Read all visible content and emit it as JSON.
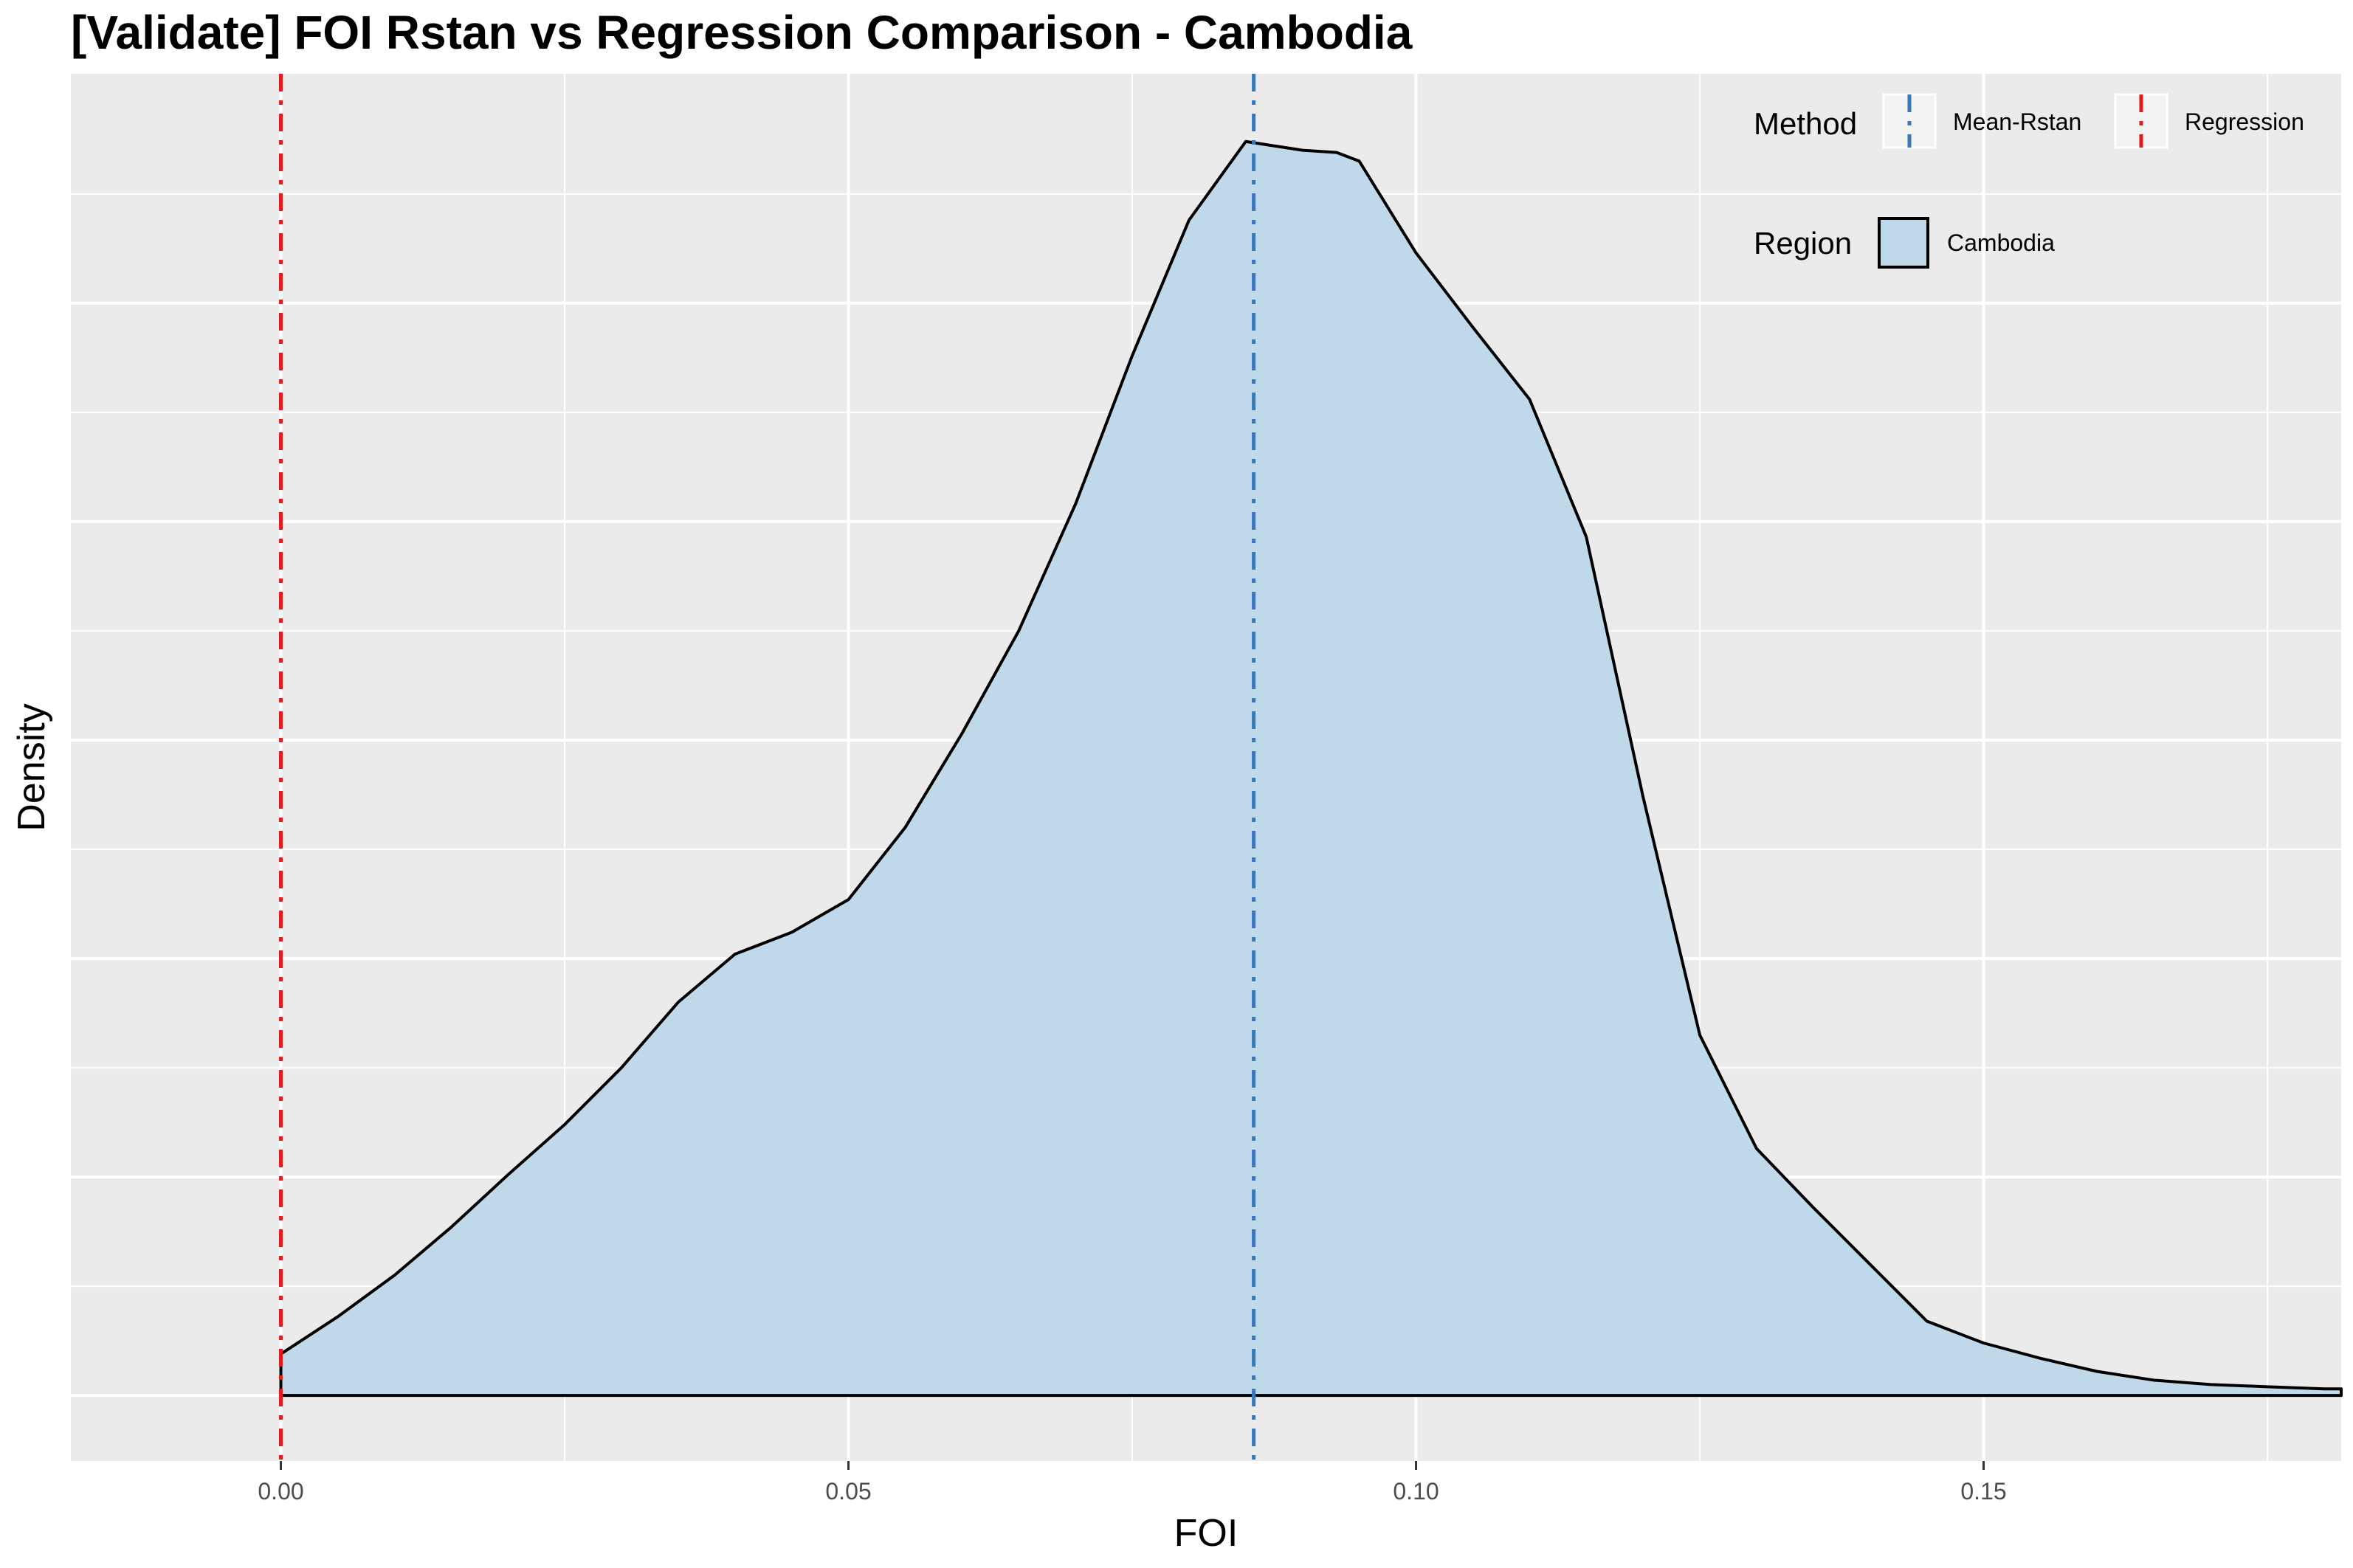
{
  "chart_data": {
    "type": "area",
    "title": "[Validate] FOI Rstan vs Regression Comparison - Cambodia",
    "xlabel": "FOI",
    "ylabel": "Density",
    "xlim": [
      -0.0185,
      0.1815
    ],
    "ylim": [
      -0.3,
      6.05
    ],
    "x_ticks": [
      0.0,
      0.05,
      0.1,
      0.15
    ],
    "x_tick_labels": [
      "0.00",
      "0.05",
      "0.10",
      "0.15"
    ],
    "x_minor_ticks": [
      0.025,
      0.075,
      0.125,
      0.175
    ],
    "y_gridlines": [
      0,
      1,
      2,
      3,
      4,
      5
    ],
    "y_minor_gridlines": [
      0.5,
      1.5,
      2.5,
      3.5,
      4.5,
      5.5
    ],
    "y_tick_labels_shown": false,
    "grid": true,
    "background": "#ebebeb",
    "series": [
      {
        "name": "Cambodia",
        "role": "density",
        "fill": "#c0d9ea",
        "stroke": "#000000",
        "x": [
          0.0,
          0.005,
          0.01,
          0.015,
          0.02,
          0.025,
          0.03,
          0.035,
          0.04,
          0.045,
          0.05,
          0.055,
          0.06,
          0.065,
          0.07,
          0.075,
          0.08,
          0.085,
          0.09,
          0.093,
          0.095,
          0.1,
          0.105,
          0.11,
          0.115,
          0.12,
          0.125,
          0.13,
          0.135,
          0.14,
          0.145,
          0.15,
          0.155,
          0.16,
          0.165,
          0.17,
          0.175,
          0.18,
          0.1815
        ],
        "y": [
          0.19,
          0.36,
          0.55,
          0.77,
          1.01,
          1.24,
          1.5,
          1.8,
          2.02,
          2.12,
          2.27,
          2.6,
          3.03,
          3.5,
          4.08,
          4.76,
          5.38,
          5.74,
          5.7,
          5.69,
          5.65,
          5.23,
          4.89,
          4.56,
          3.93,
          2.74,
          1.65,
          1.13,
          0.86,
          0.6,
          0.34,
          0.24,
          0.17,
          0.11,
          0.07,
          0.05,
          0.04,
          0.03,
          0.03
        ]
      }
    ],
    "vlines": [
      {
        "name": "Mean-Rstan",
        "x": 0.0857,
        "color": "#3a78b4",
        "dash": "dashdot"
      },
      {
        "name": "Regression",
        "x": 0.0,
        "color": "#e41a1c",
        "dash": "dashdot"
      }
    ],
    "legend": {
      "placement": "top-right",
      "groups": [
        {
          "title": "Method",
          "entries": [
            "Mean-Rstan",
            "Regression"
          ]
        },
        {
          "title": "Region",
          "entries": [
            "Cambodia"
          ]
        }
      ]
    }
  }
}
